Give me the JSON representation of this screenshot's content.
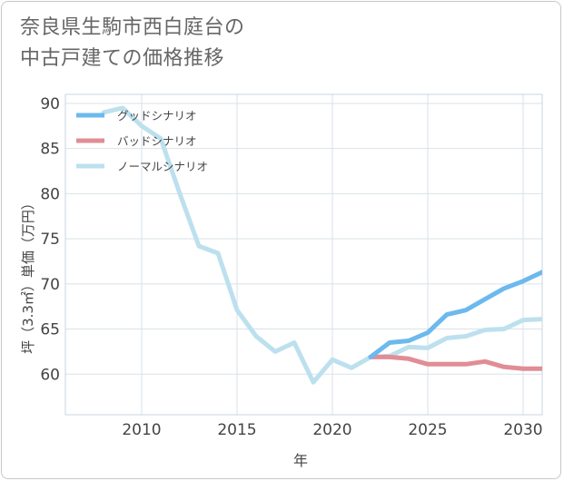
{
  "title": {
    "line1": "奈良県生駒市西白庭台の",
    "line2": "中古戸建ての価格推移"
  },
  "chart_data": {
    "type": "line",
    "title": "奈良県生駒市西白庭台の中古戸建ての価格推移",
    "xlabel": "年",
    "ylabel": "坪（3.3㎡）単価（万円）",
    "xlim": [
      2006,
      2031
    ],
    "ylim": [
      55.5,
      91
    ],
    "xticks": [
      2010,
      2015,
      2020,
      2025,
      2030
    ],
    "yticks": [
      60,
      65,
      70,
      75,
      80,
      85,
      90
    ],
    "grid": true,
    "legend_position": "top-left",
    "series": [
      {
        "name": "グッドシナリオ",
        "color": "#6cb9ee",
        "x": [
          2022,
          2023,
          2024,
          2025,
          2026,
          2027,
          2028,
          2029,
          2030,
          2031
        ],
        "y": [
          61.9,
          63.5,
          63.7,
          64.6,
          66.6,
          67.1,
          68.3,
          69.5,
          70.3,
          71.3
        ]
      },
      {
        "name": "バッドシナリオ",
        "color": "#e08d95",
        "x": [
          2022,
          2023,
          2024,
          2025,
          2026,
          2027,
          2028,
          2029,
          2030,
          2031
        ],
        "y": [
          61.9,
          61.9,
          61.7,
          61.1,
          61.1,
          61.1,
          61.4,
          60.8,
          60.6,
          60.6
        ]
      },
      {
        "name": "ノーマルシナリオ",
        "color": "#bde0ee",
        "x": [
          2008,
          2009,
          2010,
          2011,
          2012,
          2013,
          2014,
          2015,
          2016,
          2017,
          2018,
          2019,
          2020,
          2021,
          2022,
          2023,
          2024,
          2025,
          2026,
          2027,
          2028,
          2029,
          2030,
          2031
        ],
        "y": [
          89,
          89.5,
          87.5,
          86.1,
          80,
          74.2,
          73.4,
          67.1,
          64.2,
          62.5,
          63.5,
          59.1,
          61.6,
          60.7,
          61.9,
          62.0,
          63.0,
          62.9,
          64.0,
          64.2,
          64.9,
          65.0,
          66.0,
          66.1
        ]
      }
    ]
  }
}
